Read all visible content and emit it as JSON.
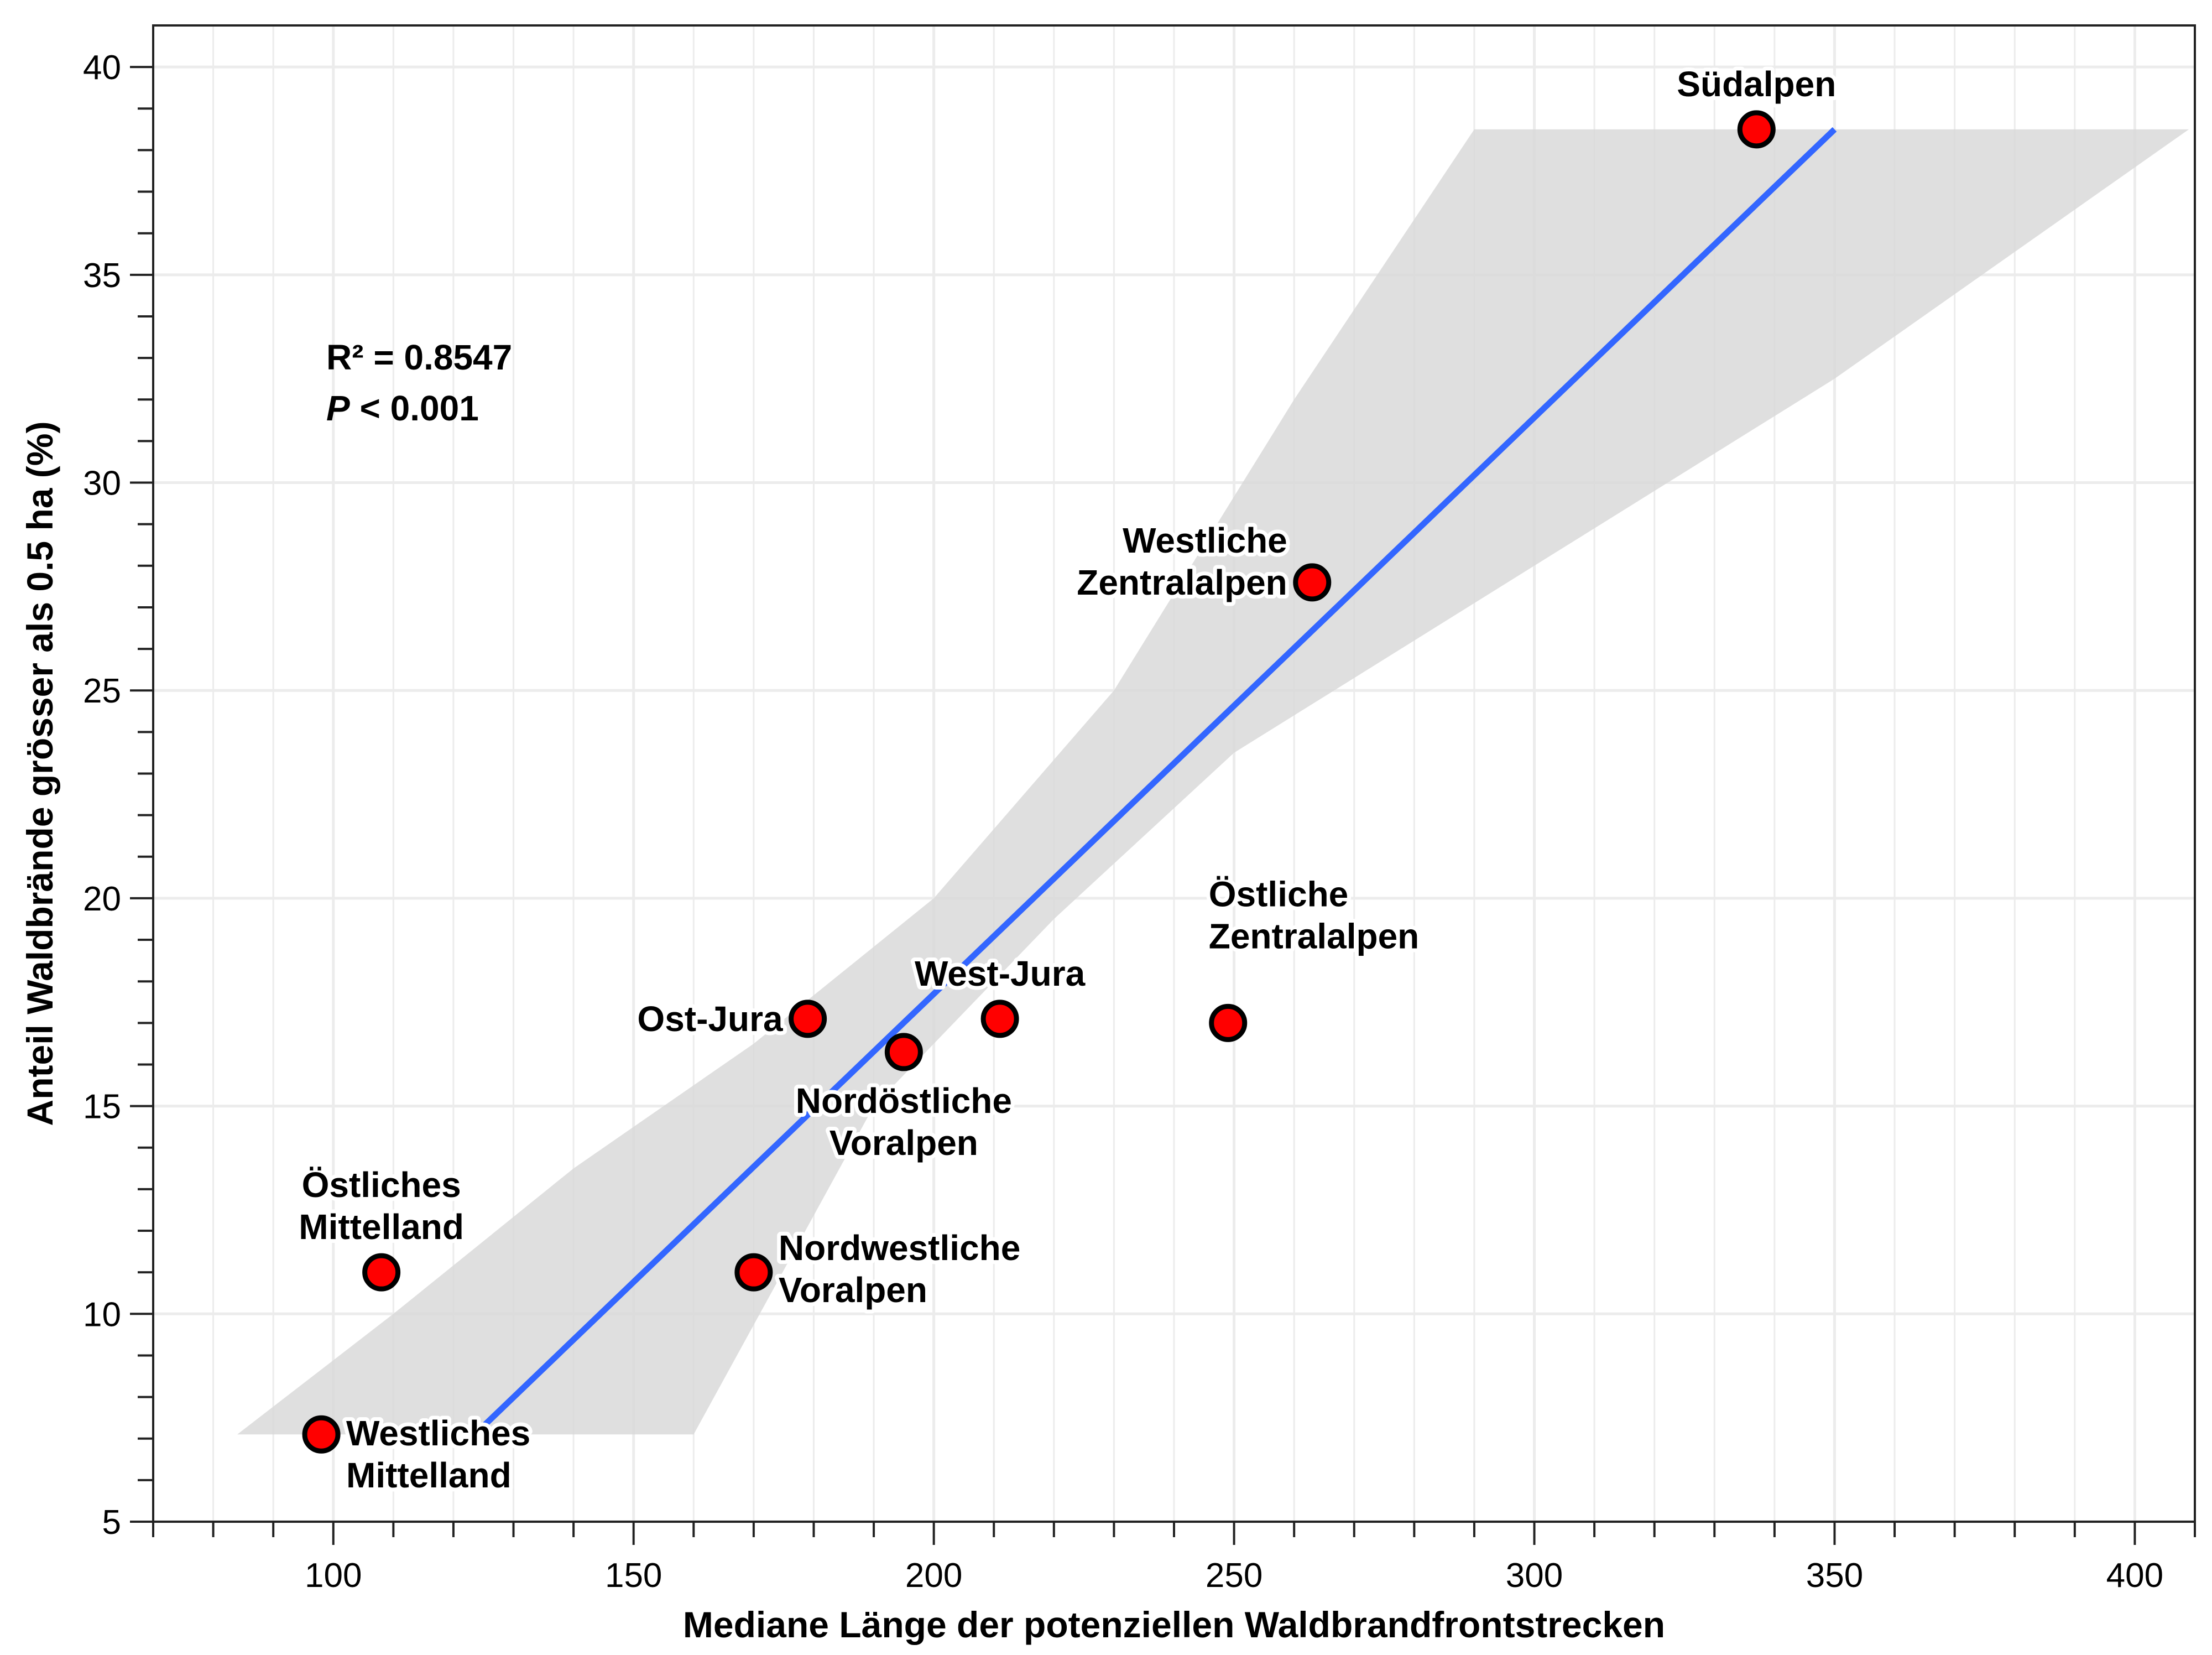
{
  "chart_data": {
    "type": "scatter",
    "title": "",
    "xlabel": "Mediane Länge der potenziellen Waldbrandfrontstrecken",
    "ylabel": "Anteil Waldbrände grösser als 0.5 ha (%)",
    "xlim": [
      70,
      410
    ],
    "ylim": [
      5,
      41
    ],
    "x_ticks": [
      100,
      150,
      200,
      250,
      300,
      350,
      400
    ],
    "x_minor_step": 10,
    "y_ticks": [
      5,
      10,
      15,
      20,
      25,
      30,
      35,
      40
    ],
    "y_minor_step": 1,
    "grid": true,
    "points": [
      {
        "label": "Südalpen",
        "x": 337,
        "y": 38.5,
        "label_pos": "top"
      },
      {
        "label": "Westliche\nZentralalpen",
        "x": 263,
        "y": 27.6,
        "label_pos": "left"
      },
      {
        "label": "Östliche\nZentralalpen",
        "x": 249,
        "y": 17.0,
        "label_pos": "top-right"
      },
      {
        "label": "West-Jura",
        "x": 211,
        "y": 17.1,
        "label_pos": "top"
      },
      {
        "label": "Ost-Jura",
        "x": 179,
        "y": 17.1,
        "label_pos": "left"
      },
      {
        "label": "Nordöstliche\nVoralpen",
        "x": 195,
        "y": 16.3,
        "label_pos": "bottom"
      },
      {
        "label": "Nordwestliche\nVoralpen",
        "x": 170,
        "y": 11.0,
        "label_pos": "right"
      },
      {
        "label": "Östliches\nMittelland",
        "x": 108,
        "y": 11.0,
        "label_pos": "top"
      },
      {
        "label": "Westliches\nMittelland",
        "x": 98,
        "y": 7.1,
        "label_pos": "right"
      }
    ],
    "regression_line": {
      "x": [
        125,
        350
      ],
      "y": [
        7.3,
        38.5
      ],
      "color": "#3366ff"
    },
    "confidence_band": {
      "upper": [
        [
          84,
          7.1
        ],
        [
          110,
          10.0
        ],
        [
          140,
          13.5
        ],
        [
          170,
          16.5
        ],
        [
          200,
          20.0
        ],
        [
          230,
          25.0
        ],
        [
          260,
          32.0
        ],
        [
          290,
          38.5
        ]
      ],
      "lower": [
        [
          160,
          7.1
        ],
        [
          190,
          15.0
        ],
        [
          220,
          19.5
        ],
        [
          250,
          23.5
        ],
        [
          300,
          28.0
        ],
        [
          350,
          32.5
        ],
        [
          409,
          38.5
        ]
      ],
      "color": "#d9d9d9"
    },
    "annotations": [
      {
        "text": "R² = 0.8547"
      },
      {
        "text_italic": "P",
        "text": " < 0.001"
      }
    ],
    "point_color": "#ff0000",
    "point_edge_color": "#000000"
  }
}
